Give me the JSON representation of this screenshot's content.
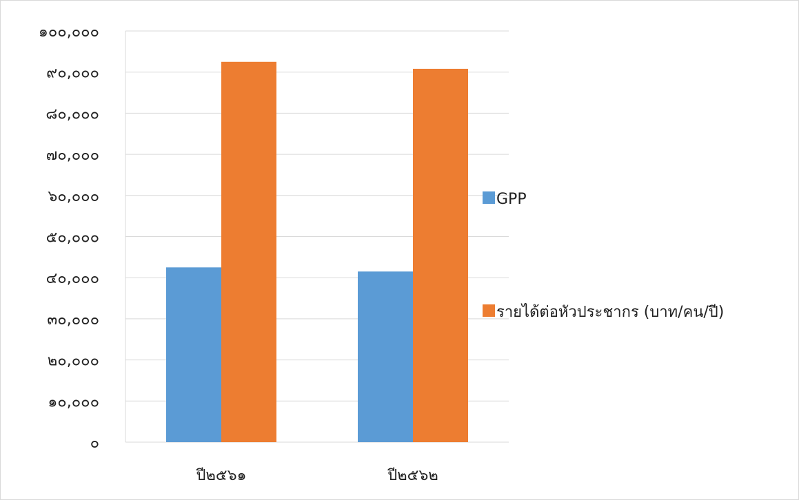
{
  "chart_data": {
    "type": "bar",
    "categories": [
      "ปี๒๕๖๑",
      "ปี๒๕๖๒"
    ],
    "series": [
      {
        "name": "GPP",
        "values": [
          42500,
          41500
        ],
        "color": "#5b9bd5"
      },
      {
        "name": "รายได้ต่อหัวประชากร (บาท/คน/ปี)",
        "values": [
          92500,
          90800
        ],
        "color": "#ed7d31"
      }
    ],
    "ylim": [
      0,
      100000
    ],
    "yticks": [
      0,
      10000,
      20000,
      30000,
      40000,
      50000,
      60000,
      70000,
      80000,
      90000,
      100000
    ],
    "ytick_labels": [
      "๐",
      "๑๐,๐๐๐",
      "๒๐,๐๐๐",
      "๓๐,๐๐๐",
      "๔๐,๐๐๐",
      "๕๐,๐๐๐",
      "๖๐,๐๐๐",
      "๗๐,๐๐๐",
      "๘๐,๐๐๐",
      "๙๐,๐๐๐",
      "๑๐๐,๐๐๐"
    ],
    "grid": true,
    "legend": "right",
    "title": "",
    "xlabel": "",
    "ylabel": ""
  }
}
